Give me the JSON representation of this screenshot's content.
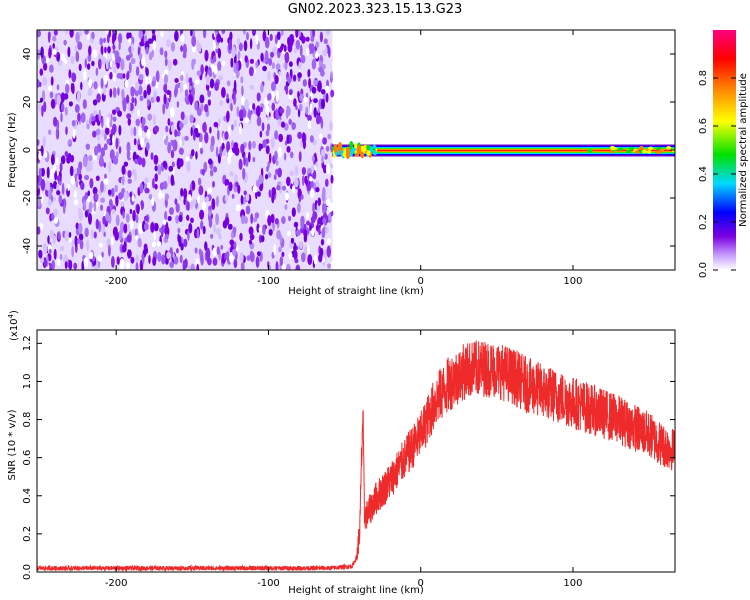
{
  "title": "GN02.2023.323.15.13.G23",
  "chart_data": [
    {
      "type": "heatmap",
      "xlabel": "Height of straight line (km)",
      "ylabel": "Frequency (Hz)",
      "xlim": [
        -252,
        167
      ],
      "ylim": [
        -50,
        50
      ],
      "xticks": [
        -200,
        -100,
        0,
        100
      ],
      "yticks": [
        -40,
        -20,
        0,
        20,
        40
      ],
      "noise_region_x": [
        -252,
        -58
      ],
      "signal_start_x": -58,
      "signal_frequency_hz": 0,
      "colorbar": {
        "label": "Normalized spectral amplitude",
        "range": [
          0,
          1
        ],
        "ticks": [
          "0.0",
          "0.2",
          "0.4",
          "0.6",
          "0.8"
        ],
        "tick_values": [
          0,
          0.2,
          0.4,
          0.6,
          0.8
        ],
        "colormap": [
          "#ffffff",
          "#7b00e0",
          "#0000ff",
          "#00d8ff",
          "#00e000",
          "#ffff00",
          "#ff8000",
          "#ff0000",
          "#ff0080"
        ]
      }
    },
    {
      "type": "line",
      "xlabel": "Height of straight line (km)",
      "ylabel": "SNR (10 * v/v)",
      "scale_label": "(x10",
      "scale_exp": "4",
      "scale_close": ")",
      "xlim": [
        -252,
        167
      ],
      "ylim": [
        0,
        1.27
      ],
      "xticks": [
        -200,
        -100,
        0,
        100
      ],
      "yticks": [
        "0.0",
        "0.2",
        "0.4",
        "0.6",
        "0.8",
        "1.0",
        "1.2"
      ],
      "ytick_values": [
        0,
        0.2,
        0.4,
        0.6,
        0.8,
        1.0,
        1.2
      ],
      "color": "#ee2a2a",
      "series": [
        {
          "x": [
            -252,
            -200,
            -150,
            -100,
            -60,
            -45,
            -42,
            -40,
            -38,
            -37,
            -35,
            -30,
            -20,
            -10,
            0,
            10,
            20,
            30,
            40,
            50,
            60,
            70,
            80,
            90,
            100,
            110,
            120,
            130,
            140,
            150,
            160,
            167
          ],
          "y": [
            0.02,
            0.02,
            0.02,
            0.02,
            0.02,
            0.03,
            0.08,
            0.22,
            0.84,
            0.3,
            0.3,
            0.38,
            0.48,
            0.6,
            0.72,
            0.9,
            1.0,
            1.06,
            1.07,
            1.06,
            1.03,
            0.98,
            0.95,
            0.92,
            0.89,
            0.86,
            0.83,
            0.8,
            0.76,
            0.72,
            0.66,
            0.64
          ]
        }
      ]
    }
  ]
}
